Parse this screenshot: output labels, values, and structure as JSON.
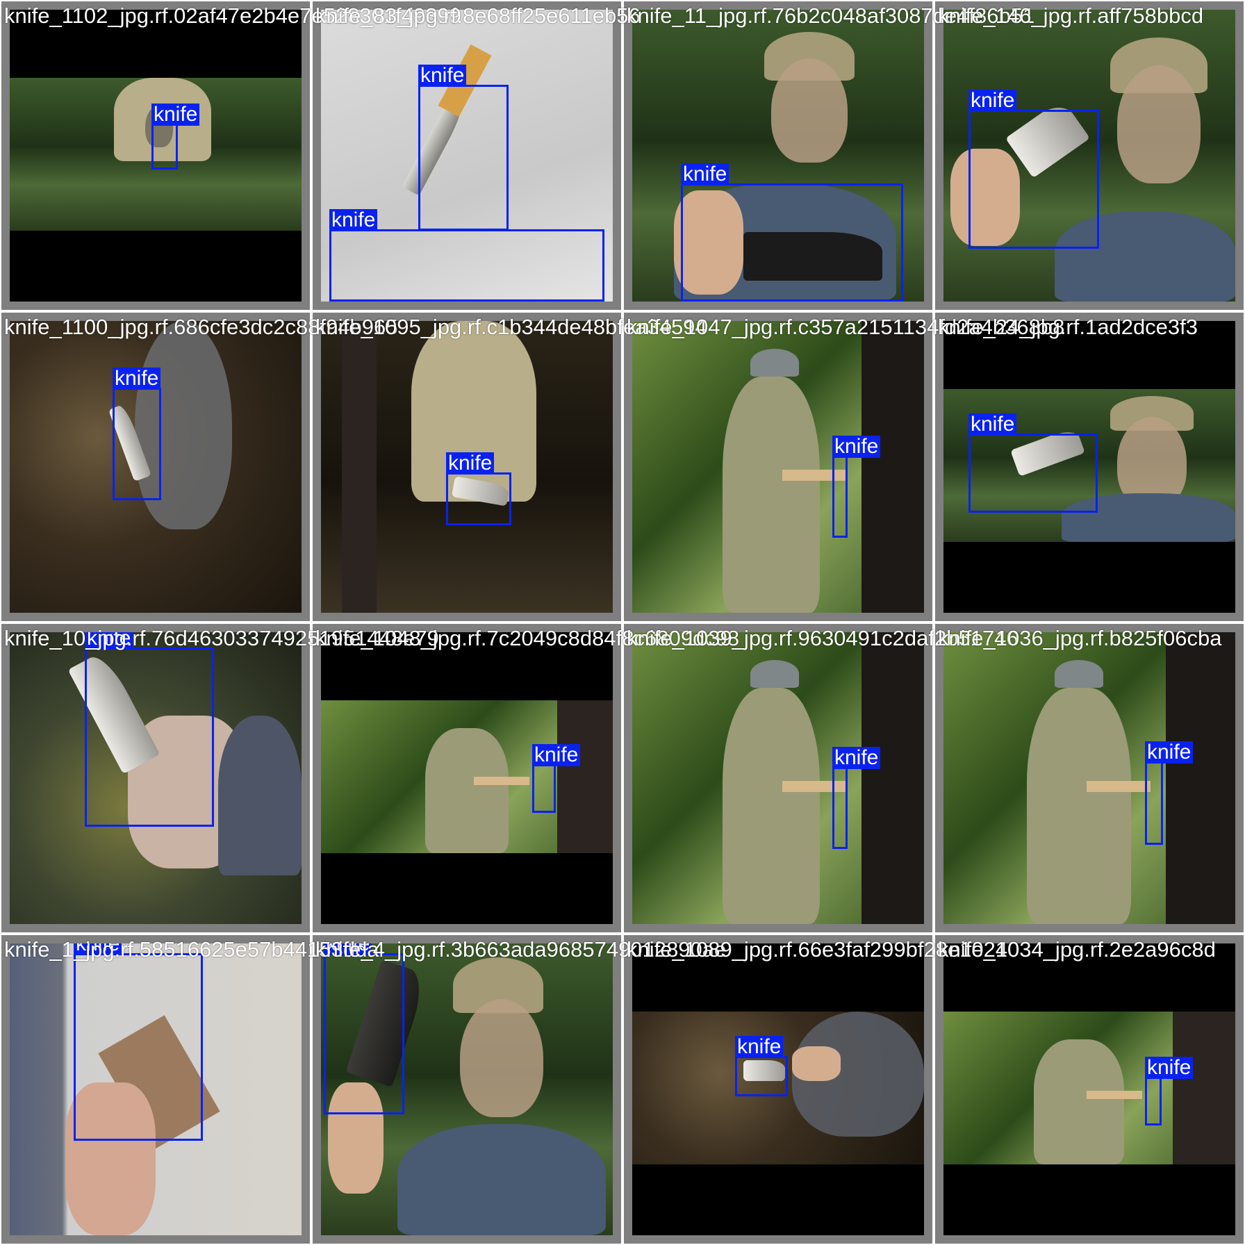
{
  "box_color": "#0a22f0",
  "tiles": [
    {
      "filename": "knife_1102_jpg.rf.02af47e2b4e7e528301f49399",
      "scene": "forest",
      "labels": [
        "knife"
      ]
    },
    {
      "filename": "knife_83_jpg.rf.8e68ff25e611eb56",
      "scene": "pale",
      "labels": [
        "knife",
        "knife"
      ]
    },
    {
      "filename": "knife_11_jpg.rf.76b2c048af3087de4f86b51",
      "scene": "forest",
      "labels": [
        "knife"
      ]
    },
    {
      "filename": "knife_146_jpg.rf.aff758bbcd",
      "scene": "forest",
      "labels": [
        "knife"
      ]
    },
    {
      "filename": "knife_1100_jpg.rf.686cfe3dc2c88f94b965",
      "scene": "leaf",
      "labels": [
        "knife"
      ]
    },
    {
      "filename": "knife_1095_jpg.rf.c1b344de48bfea34594",
      "scene": "dark",
      "labels": [
        "knife"
      ]
    },
    {
      "filename": "knife_1047_jpg.rf.c357a2151134fd2a4b368b8",
      "scene": "sunny",
      "labels": [
        "knife"
      ]
    },
    {
      "filename": "knife_24_jpg.rf.1ad2dce3f3",
      "scene": "forest",
      "labels": [
        "knife"
      ]
    },
    {
      "filename": "knife_10_jpg.rf.76d463033749251951448e79",
      "scene": "blur",
      "labels": [
        "knife"
      ]
    },
    {
      "filename": "knife_1048_jpg.rf.7c2049c8d84f8c6809dc98",
      "scene": "sunny",
      "labels": [
        "knife"
      ]
    },
    {
      "filename": "knife_1039_jpg.rf.9630491c2daf2b51746",
      "scene": "sunny",
      "labels": [
        "knife"
      ]
    },
    {
      "filename": "knife_1036_jpg.rf.b825f06cba",
      "scene": "sunny",
      "labels": [
        "knife"
      ]
    },
    {
      "filename": "knife_1_jpg.rf.58516625e57b44153dda",
      "scene": "pale",
      "labels": [
        "knife"
      ]
    },
    {
      "filename": "knife_4_jpg.rf.3b663ada9685749012890ae",
      "scene": "forest",
      "labels": [
        "knife"
      ]
    },
    {
      "filename": "knife_1089_jpg.rf.66e3faf299bf28e10240",
      "scene": "leaf",
      "labels": [
        "knife"
      ]
    },
    {
      "filename": "knife_1034_jpg.rf.2e2a96c8d",
      "scene": "sunny",
      "labels": [
        "knife"
      ]
    }
  ]
}
